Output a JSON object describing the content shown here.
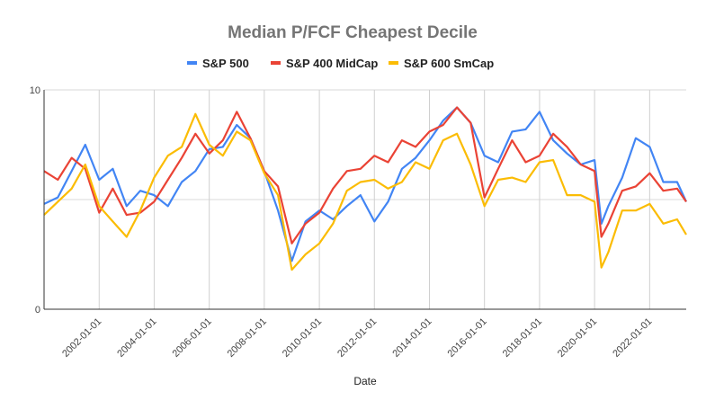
{
  "chart_data": {
    "type": "line",
    "title": "Median P/FCF Cheapest Decile",
    "xlabel": "Date",
    "ylabel": "",
    "ylim": [
      0,
      10
    ],
    "yticks": [
      "0",
      "5",
      "10"
    ],
    "ytick_labels": [
      "0",
      "",
      "10"
    ],
    "xlim": [
      "2000-01-01",
      "2023-05-01"
    ],
    "xticks": [
      "2002-01-01",
      "2004-01-01",
      "2006-01-01",
      "2008-01-01",
      "2010-01-01",
      "2012-01-01",
      "2014-01-01",
      "2016-01-01",
      "2018-01-01",
      "2020-01-01",
      "2022-01-01"
    ],
    "grid": true,
    "legend_position": "top",
    "x": [
      "2000-01-01",
      "2000-07-01",
      "2001-01-01",
      "2001-07-01",
      "2002-01-01",
      "2002-07-01",
      "2003-01-01",
      "2003-07-01",
      "2004-01-01",
      "2004-07-01",
      "2005-01-01",
      "2005-07-01",
      "2006-01-01",
      "2006-07-01",
      "2007-01-01",
      "2007-07-01",
      "2008-01-01",
      "2008-07-01",
      "2009-01-01",
      "2009-07-01",
      "2010-01-01",
      "2010-07-01",
      "2011-01-01",
      "2011-07-01",
      "2012-01-01",
      "2012-07-01",
      "2013-01-01",
      "2013-07-01",
      "2014-01-01",
      "2014-07-01",
      "2015-01-01",
      "2015-07-01",
      "2016-01-01",
      "2016-07-01",
      "2017-01-01",
      "2017-07-01",
      "2018-01-01",
      "2018-07-01",
      "2019-01-01",
      "2019-07-01",
      "2020-01-01",
      "2020-04-01",
      "2020-07-01",
      "2021-01-01",
      "2021-07-01",
      "2022-01-01",
      "2022-07-01",
      "2023-01-01",
      "2023-05-01"
    ],
    "series": [
      {
        "name": "S&P 500",
        "color": "#4285f4",
        "values": [
          4.8,
          5.1,
          6.3,
          7.5,
          5.9,
          6.4,
          4.7,
          5.4,
          5.2,
          4.7,
          5.8,
          6.3,
          7.3,
          7.4,
          8.4,
          7.8,
          6.3,
          4.5,
          2.2,
          4.0,
          4.5,
          4.1,
          4.7,
          5.2,
          4.0,
          4.9,
          6.4,
          6.9,
          7.7,
          8.6,
          9.2,
          8.5,
          7.0,
          6.7,
          8.1,
          8.2,
          9.0,
          7.7,
          7.1,
          6.6,
          6.8,
          3.9,
          4.7,
          6.0,
          7.8,
          7.4,
          5.8,
          5.8,
          4.9
        ]
      },
      {
        "name": "S&P 400 MidCap",
        "color": "#ea4335",
        "values": [
          6.3,
          5.9,
          6.9,
          6.4,
          4.4,
          5.5,
          4.3,
          4.4,
          4.9,
          5.9,
          6.9,
          8.0,
          7.1,
          7.7,
          9.0,
          7.8,
          6.3,
          5.6,
          3.0,
          3.9,
          4.4,
          5.5,
          6.3,
          6.4,
          7.0,
          6.7,
          7.7,
          7.4,
          8.1,
          8.4,
          9.2,
          8.5,
          5.1,
          6.4,
          7.7,
          6.7,
          7.0,
          8.0,
          7.4,
          6.6,
          6.3,
          3.3,
          3.9,
          5.4,
          5.6,
          6.2,
          5.4,
          5.5,
          4.9
        ]
      },
      {
        "name": "S&P 600 SmCap",
        "color": "#fbbc04",
        "values": [
          4.3,
          4.9,
          5.5,
          6.6,
          4.7,
          4.0,
          3.3,
          4.5,
          6.0,
          7.0,
          7.4,
          8.9,
          7.5,
          7.0,
          8.1,
          7.7,
          6.2,
          5.2,
          1.8,
          2.5,
          3.0,
          3.9,
          5.4,
          5.8,
          5.9,
          5.5,
          5.8,
          6.7,
          6.4,
          7.7,
          8.0,
          6.6,
          4.7,
          5.9,
          6.0,
          5.8,
          6.7,
          6.8,
          5.2,
          5.2,
          4.9,
          1.9,
          2.6,
          4.5,
          4.5,
          4.8,
          3.9,
          4.1,
          3.4
        ]
      }
    ]
  }
}
